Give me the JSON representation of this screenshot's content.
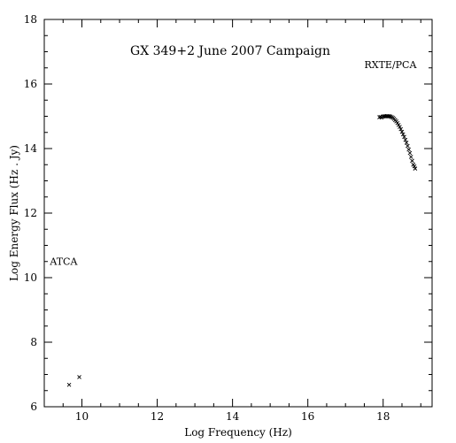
{
  "chart_data": {
    "type": "scatter",
    "title": "GX 349+2 June 2007 Campaign",
    "xlabel": "Log Frequency (Hz)",
    "ylabel": "Log Energy Flux (Hz . Jy)",
    "xlim": [
      9,
      19.3
    ],
    "ylim": [
      6,
      18
    ],
    "xticks": [
      10,
      12,
      14,
      16,
      18
    ],
    "yticks": [
      6,
      8,
      10,
      12,
      14,
      16,
      18
    ],
    "xminor_step": 0.5,
    "yminor_step": 0.5,
    "grid": false,
    "marker": "x",
    "annotations": [
      {
        "text": "ATCA",
        "x": 9.15,
        "y": 10.4
      },
      {
        "text": "RXTE/PCA",
        "x": 17.5,
        "y": 16.5
      }
    ],
    "series": [
      {
        "x": [
          9.66,
          9.93
        ],
        "y": [
          6.68,
          6.92
        ]
      },
      {
        "x": [
          17.9,
          17.93,
          17.96,
          17.99,
          18.02,
          18.05,
          18.08,
          18.11,
          18.14,
          18.17,
          18.2,
          18.23,
          18.26,
          18.29,
          18.32,
          18.35,
          18.38,
          18.41,
          18.44,
          18.47,
          18.5,
          18.53,
          18.56,
          18.59,
          18.62,
          18.65,
          18.68,
          18.71,
          18.74,
          18.77,
          18.8,
          18.83,
          18.85
        ],
        "y": [
          14.97,
          14.98,
          14.96,
          14.99,
          15.0,
          15.0,
          15.0,
          15.01,
          15.0,
          15.0,
          14.99,
          14.97,
          14.95,
          14.92,
          14.88,
          14.84,
          14.79,
          14.73,
          14.67,
          14.6,
          14.52,
          14.44,
          14.36,
          14.27,
          14.18,
          14.08,
          13.97,
          13.86,
          13.74,
          13.62,
          13.5,
          13.45,
          13.38
        ]
      }
    ]
  }
}
